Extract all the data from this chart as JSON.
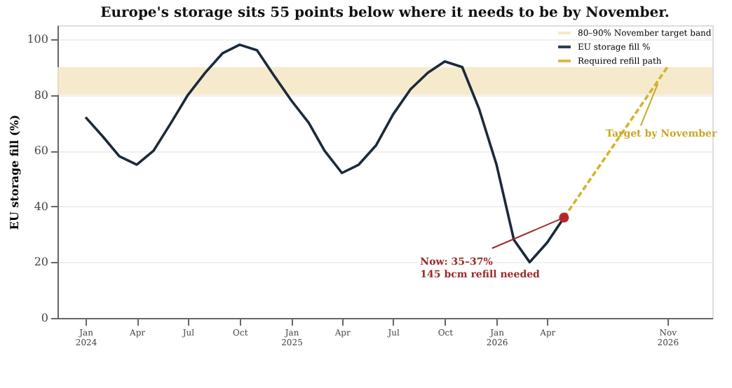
{
  "chart_data": {
    "type": "line",
    "title": "Europe's storage sits 55 points below where it needs to be by November.",
    "ylabel": "EU storage fill (%)",
    "x": [
      "2024-01",
      "2024-02",
      "2024-03",
      "2024-04",
      "2024-05",
      "2024-06",
      "2024-07",
      "2024-08",
      "2024-09",
      "2024-10",
      "2024-11",
      "2024-12",
      "2025-01",
      "2025-02",
      "2025-03",
      "2025-04",
      "2025-05",
      "2025-06",
      "2025-07",
      "2025-08",
      "2025-09",
      "2025-10",
      "2025-11",
      "2025-12",
      "2026-01",
      "2026-02",
      "2026-03",
      "2026-04",
      "2026-05"
    ],
    "series": [
      {
        "name": "EU storage fill %",
        "color": "#1b2a3a",
        "line_style": "solid",
        "values": [
          72,
          65,
          58,
          55,
          60,
          70,
          80,
          88,
          95,
          98,
          96,
          87,
          78,
          70,
          60,
          52,
          55,
          62,
          73,
          82,
          88,
          92,
          90,
          75,
          55,
          28,
          20,
          27,
          36
        ]
      },
      {
        "name": "Required refill path",
        "color": "#d4b42e",
        "type": "line",
        "line_style": "dashed",
        "x": [
          "2026-05",
          "2026-11"
        ],
        "values": [
          36,
          90
        ]
      },
      {
        "color": "#b5272d",
        "type": "scatter",
        "marker": "circle",
        "x": [
          "2026-05"
        ],
        "values": [
          36
        ]
      }
    ],
    "bands": [
      {
        "axis": "y",
        "from": 80,
        "to": 90,
        "label": "80–90% November target band",
        "color": "#f5e8c8"
      }
    ],
    "annotations": [
      {
        "text": "Now: 35–37%\n145 bcm refill needed",
        "x": "2026-05",
        "y": 36
      },
      {
        "text": "Target by November",
        "x": "2026-10-15",
        "y": 84
      }
    ],
    "xlim": [
      "2023-11-12",
      "2027-01-20"
    ],
    "xticks": [
      {
        "value": "2024-01",
        "label": "Jan 2024"
      },
      {
        "value": "2024-04",
        "label": "Apr"
      },
      {
        "value": "2024-07",
        "label": "Jul"
      },
      {
        "value": "2024-10",
        "label": "Oct"
      },
      {
        "value": "2025-01",
        "label": "Jan 2025"
      },
      {
        "value": "2025-04",
        "label": "Apr"
      },
      {
        "value": "2025-07",
        "label": "Jul"
      },
      {
        "value": "2025-10",
        "label": "Oct"
      },
      {
        "value": "2026-01",
        "label": "Jan 2026"
      },
      {
        "value": "2026-04",
        "label": "Apr"
      },
      {
        "value": "2026-11",
        "label": "Nov 2026"
      }
    ],
    "ylim": [
      0,
      105
    ],
    "yticks": [
      0,
      20,
      40,
      60,
      80,
      100
    ],
    "grid": "y",
    "legend": "top right"
  }
}
